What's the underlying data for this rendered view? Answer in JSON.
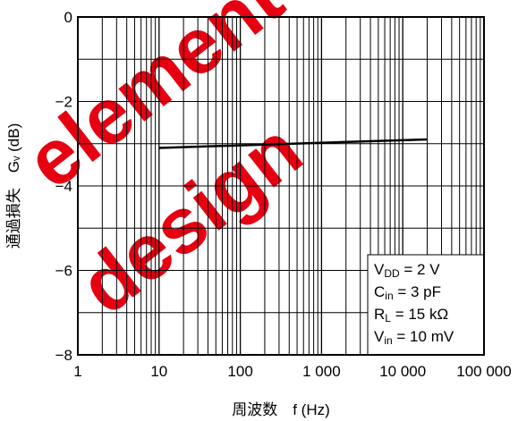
{
  "chart_data": {
    "type": "line",
    "xscale": "log",
    "xlim": [
      1,
      100000
    ],
    "ylim": [
      -8,
      0
    ],
    "grid": true,
    "x_tick_labels": [
      "1",
      "10",
      "100",
      "1 000",
      "10 000",
      "100 000"
    ],
    "x_tick_values": [
      1,
      10,
      100,
      1000,
      10000,
      100000
    ],
    "y_tick_labels": [
      "0",
      "−2",
      "−4",
      "−6",
      "−8"
    ],
    "y_tick_values": [
      0,
      -2,
      -4,
      -6,
      -8
    ],
    "xlabel": "周波数　f (Hz)",
    "ylabel": "通過損失　Gᵥ (dB)",
    "series": [
      {
        "x": [
          10,
          20000
        ],
        "y": [
          -3.1,
          -2.9
        ]
      }
    ],
    "legend_box": {
      "position": "bottom-right",
      "lines": [
        {
          "main": "V",
          "sub": "DD",
          "rest": " = 2 V"
        },
        {
          "main": "C",
          "sub": "in",
          "rest": " = 3 pF"
        },
        {
          "main": "R",
          "sub": "L",
          "rest": " = 15 kΩ"
        },
        {
          "main": "V",
          "sub": "in",
          "rest": " = 10 mV"
        }
      ]
    }
  },
  "watermark": [
    "element",
    "design"
  ]
}
